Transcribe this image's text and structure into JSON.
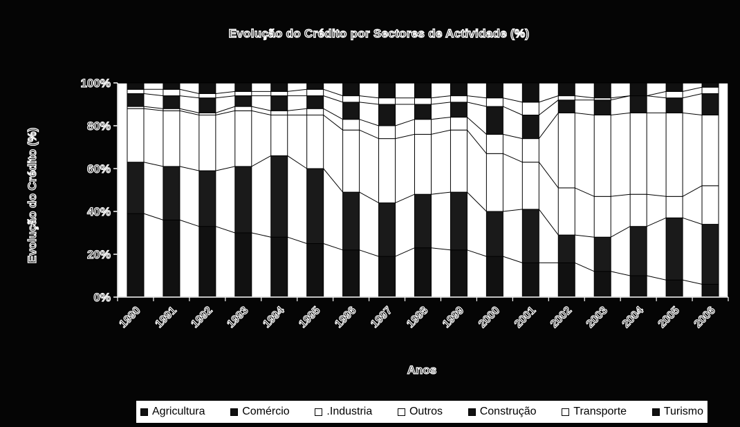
{
  "chart_data": {
    "type": "bar",
    "stacked": "percent",
    "title": "Evolução do Crédito por Sectores de Actividade (%)",
    "xlabel": "Anos",
    "ylabel": "Evolução do Crédito (%)",
    "ylim": [
      0,
      100
    ],
    "yticks": [
      "0%",
      "20%",
      "40%",
      "60%",
      "80%",
      "100%"
    ],
    "categories": [
      "1990",
      "1991",
      "1992",
      "1993",
      "1994",
      "1995",
      "1996",
      "1997",
      "1998",
      "1999",
      "2000",
      "2001",
      "2002",
      "2003",
      "2004",
      "2005",
      "2006"
    ],
    "series": [
      {
        "name": "Agricultura",
        "color": "#111111",
        "values": [
          39,
          36,
          33,
          30,
          28,
          25,
          22,
          19,
          23,
          22,
          19,
          16,
          16,
          12,
          10,
          8,
          6
        ]
      },
      {
        "name": "Comércio",
        "color": "#1a1a1a",
        "values": [
          24,
          25,
          26,
          31,
          38,
          35,
          27,
          25,
          25,
          27,
          21,
          25,
          13,
          16,
          23,
          29,
          28
        ]
      },
      {
        "name": ".Industria",
        "color": "#ffffff",
        "values": [
          25,
          26,
          26,
          26,
          19,
          25,
          29,
          30,
          28,
          29,
          27,
          22,
          22,
          19,
          15,
          10,
          18
        ]
      },
      {
        "name": "Outros",
        "color": "#ffffff",
        "values": [
          1,
          1,
          1,
          2,
          2,
          3,
          5,
          6,
          7,
          6,
          9,
          11,
          35,
          38,
          38,
          39,
          33
        ]
      },
      {
        "name": "Construção",
        "color": "#151515",
        "values": [
          6,
          6,
          7,
          5,
          7,
          6,
          8,
          10,
          7,
          7,
          13,
          11,
          6,
          7,
          8,
          7,
          10
        ]
      },
      {
        "name": "Transporte",
        "color": "#ffffff",
        "values": [
          2,
          3,
          2,
          2,
          2,
          3,
          3,
          3,
          3,
          3,
          4,
          6,
          2,
          1,
          0,
          3,
          3
        ]
      },
      {
        "name": "Turismo",
        "color": "#101010",
        "values": [
          3,
          3,
          5,
          4,
          4,
          3,
          6,
          7,
          7,
          6,
          7,
          9,
          6,
          7,
          6,
          4,
          2
        ]
      }
    ],
    "legend": "bottom",
    "grid": false
  }
}
